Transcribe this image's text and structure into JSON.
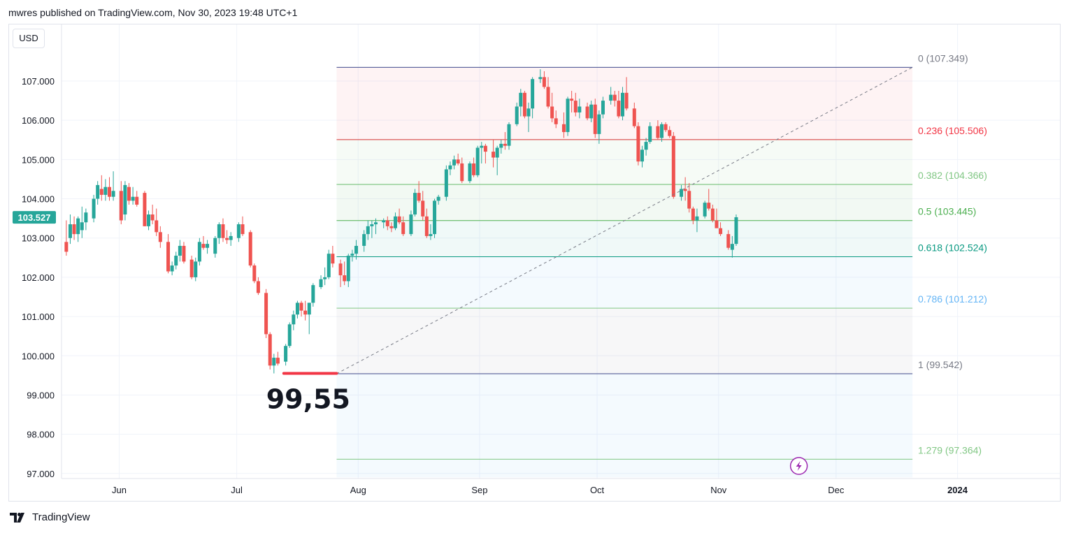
{
  "header": {
    "publisher_line": "mwres published on TradingView.com, Nov 30, 2023 19:48 UTC+1"
  },
  "footer": {
    "brand": "TradingView"
  },
  "currency_label": "USD",
  "colors": {
    "up": "#26a69a",
    "down": "#ef5350",
    "price_tag": "#26a69a",
    "level_line": "#089981",
    "annotation": "#f23645"
  },
  "chart_data": {
    "type": "candlestick",
    "y_ticks": [
      "107.000",
      "106.000",
      "105.000",
      "104.000",
      "103.000",
      "102.000",
      "101.000",
      "100.000",
      "99.000",
      "98.000",
      "97.000"
    ],
    "y_tick_values": [
      107,
      106,
      105,
      104,
      103,
      102,
      101,
      100,
      99,
      98,
      97
    ],
    "ylim": [
      96.9,
      108.3
    ],
    "x_ticks": [
      {
        "label": "Jun",
        "day": 0
      },
      {
        "label": "Jul",
        "day": 30
      },
      {
        "label": "Aug",
        "day": 61
      },
      {
        "label": "Sep",
        "day": 92
      },
      {
        "label": "Oct",
        "day": 122
      },
      {
        "label": "Nov",
        "day": 153
      },
      {
        "label": "Dec",
        "day": 183
      },
      {
        "label": "2024",
        "day": 214
      }
    ],
    "x_origin_date": "2023-06-01",
    "last_price": "103.527",
    "last_price_value": 103.527,
    "fib_start_day": 55.5,
    "fib_end_day": 202.5,
    "fib_levels": [
      {
        "label": "0 (107.349)",
        "value": 107.349,
        "color": "#787b86",
        "line": "#3f4a8c"
      },
      {
        "label": "0.236 (105.506)",
        "value": 105.506,
        "color": "#f23645",
        "line": "#d32f2f"
      },
      {
        "label": "0.382 (104.366)",
        "value": 104.366,
        "color": "#81c784",
        "line": "#66bb6a"
      },
      {
        "label": "0.5 (103.445)",
        "value": 103.445,
        "color": "#4caf50",
        "line": "#4caf50"
      },
      {
        "label": "0.618 (102.524)",
        "value": 102.524,
        "color": "#089981",
        "line": "#089981"
      },
      {
        "label": "0.786 (101.212)",
        "value": 101.212,
        "color": "#64b5f6",
        "line": "#81c784"
      },
      {
        "label": "1 (99.542)",
        "value": 99.542,
        "color": "#787b86",
        "line": "#3f4a8c"
      },
      {
        "label": "1.279 (97.364)",
        "value": 97.364,
        "color": "#81c784",
        "line": "#81c784"
      }
    ],
    "fib_zones": [
      {
        "from": 107.349,
        "to": 105.506,
        "fill": "rgba(242,54,69,0.06)"
      },
      {
        "from": 105.506,
        "to": 104.366,
        "fill": "rgba(129,199,132,0.07)"
      },
      {
        "from": 104.366,
        "to": 103.445,
        "fill": "rgba(76,175,80,0.07)"
      },
      {
        "from": 103.445,
        "to": 102.524,
        "fill": "rgba(8,153,129,0.06)"
      },
      {
        "from": 102.524,
        "to": 101.212,
        "fill": "rgba(100,181,246,0.07)"
      },
      {
        "from": 101.212,
        "to": 99.542,
        "fill": "rgba(120,123,134,0.06)"
      },
      {
        "from": 99.542,
        "to": 96.9,
        "fill": "rgba(100,181,246,0.07)"
      }
    ],
    "trend_line": {
      "from": {
        "day": 55.5,
        "value": 99.542
      },
      "to": {
        "day": 202.5,
        "value": 107.349
      }
    },
    "support_line": {
      "from_day": 42,
      "to_day": 55.5,
      "value": 99.55
    },
    "annotation_text": "99,55",
    "candles": [
      [
        -13.5,
        102.9,
        103.45,
        102.55,
        102.65
      ],
      [
        -12.5,
        103.0,
        103.6,
        102.85,
        103.35
      ],
      [
        -11.5,
        103.35,
        103.55,
        102.95,
        103.1
      ],
      [
        -10.5,
        103.1,
        103.55,
        102.9,
        103.5
      ],
      [
        -9.5,
        103.2,
        103.8,
        103.0,
        103.4
      ],
      [
        -8.5,
        103.4,
        103.75,
        103.2,
        103.65
      ],
      [
        -6.5,
        103.5,
        104.1,
        103.4,
        104.0
      ],
      [
        -5.5,
        104.0,
        104.45,
        103.85,
        104.35
      ],
      [
        -4.5,
        104.25,
        104.6,
        103.95,
        104.1
      ],
      [
        -3.5,
        104.1,
        104.5,
        103.95,
        104.3
      ],
      [
        -2.5,
        104.3,
        104.55,
        103.95,
        104.05
      ],
      [
        -1.5,
        104.05,
        104.7,
        103.95,
        104.2
      ],
      [
        0.5,
        104.2,
        104.45,
        103.35,
        103.45
      ],
      [
        1.5,
        103.6,
        104.45,
        103.45,
        104.35
      ],
      [
        2.5,
        104.3,
        104.4,
        103.85,
        103.95
      ],
      [
        3.5,
        103.95,
        104.3,
        103.85,
        104.05
      ],
      [
        4.5,
        104.05,
        104.2,
        103.8,
        103.85
      ],
      [
        6.5,
        104.15,
        104.2,
        103.3,
        103.3
      ],
      [
        7.5,
        103.3,
        103.7,
        103.2,
        103.6
      ],
      [
        8.5,
        103.6,
        103.85,
        103.35,
        103.45
      ],
      [
        9.5,
        103.45,
        103.75,
        103.05,
        103.15
      ],
      [
        10.5,
        103.15,
        103.3,
        102.75,
        102.9
      ],
      [
        12.5,
        102.9,
        103.1,
        102.1,
        102.15
      ],
      [
        13.5,
        102.15,
        102.4,
        102.05,
        102.3
      ],
      [
        14.5,
        102.3,
        102.65,
        102.2,
        102.55
      ],
      [
        15.5,
        102.55,
        102.95,
        102.4,
        102.8
      ],
      [
        16.5,
        102.8,
        102.9,
        102.35,
        102.4
      ],
      [
        18.5,
        102.45,
        102.55,
        101.95,
        102.0
      ],
      [
        19.5,
        102.0,
        102.5,
        101.9,
        102.4
      ],
      [
        20.5,
        102.4,
        103.0,
        102.3,
        102.9
      ],
      [
        21.5,
        102.85,
        103.05,
        102.7,
        102.75
      ],
      [
        22.5,
        102.75,
        102.95,
        102.6,
        102.85
      ],
      [
        24.5,
        102.6,
        103.05,
        102.5,
        103.0
      ],
      [
        25.5,
        103.0,
        103.4,
        102.85,
        103.35
      ],
      [
        26.5,
        103.35,
        103.5,
        102.9,
        103.0
      ],
      [
        27.5,
        103.0,
        103.2,
        102.85,
        102.95
      ],
      [
        28.5,
        102.95,
        103.15,
        102.8,
        103.05
      ],
      [
        30.5,
        103.0,
        103.4,
        102.9,
        103.35
      ],
      [
        31.5,
        103.35,
        103.55,
        103.05,
        103.1
      ],
      [
        33.5,
        103.15,
        103.2,
        102.25,
        102.3
      ],
      [
        34.5,
        102.3,
        102.35,
        101.85,
        101.9
      ],
      [
        35.5,
        101.9,
        102.0,
        101.55,
        101.6
      ],
      [
        37.5,
        101.6,
        101.7,
        100.45,
        100.55
      ],
      [
        38.5,
        100.55,
        100.6,
        99.65,
        99.75
      ],
      [
        39.5,
        99.75,
        100.05,
        99.55,
        99.95
      ],
      [
        40.5,
        99.95,
        100.1,
        99.75,
        99.8
      ],
      [
        42.5,
        99.85,
        100.3,
        99.75,
        100.25
      ],
      [
        43.5,
        100.25,
        100.85,
        100.2,
        100.8
      ],
      [
        44.5,
        100.8,
        101.15,
        100.65,
        101.05
      ],
      [
        45.5,
        101.05,
        101.4,
        100.95,
        101.35
      ],
      [
        46.5,
        101.35,
        101.4,
        101.0,
        101.15
      ],
      [
        47.5,
        101.15,
        101.4,
        100.9,
        101.05
      ],
      [
        48.5,
        101.05,
        101.35,
        100.55,
        101.35
      ],
      [
        49.5,
        101.35,
        101.85,
        101.25,
        101.8
      ],
      [
        51.5,
        101.75,
        102.05,
        101.7,
        101.95
      ],
      [
        52.5,
        101.95,
        102.25,
        101.8,
        102.0
      ],
      [
        53.5,
        102.0,
        102.7,
        101.95,
        102.6
      ],
      [
        54.5,
        102.6,
        102.8,
        102.25,
        102.35
      ],
      [
        56.5,
        102.35,
        102.45,
        101.75,
        102.05
      ],
      [
        57.5,
        102.05,
        102.4,
        101.8,
        101.9
      ],
      [
        58.5,
        101.9,
        102.6,
        101.75,
        102.55
      ],
      [
        59.5,
        102.55,
        102.7,
        102.4,
        102.6
      ],
      [
        60.5,
        102.6,
        102.95,
        102.45,
        102.8
      ],
      [
        62.5,
        102.8,
        103.2,
        102.65,
        103.1
      ],
      [
        63.5,
        103.1,
        103.45,
        102.95,
        103.3
      ],
      [
        64.5,
        103.3,
        103.45,
        103.0,
        103.35
      ],
      [
        65.5,
        103.35,
        103.5,
        103.1,
        103.4
      ],
      [
        67.5,
        103.4,
        103.5,
        103.25,
        103.45
      ],
      [
        68.5,
        103.45,
        103.55,
        103.2,
        103.3
      ],
      [
        69.5,
        103.3,
        103.4,
        103.15,
        103.25
      ],
      [
        70.5,
        103.25,
        103.65,
        103.2,
        103.55
      ],
      [
        71.5,
        103.55,
        103.75,
        103.35,
        103.4
      ],
      [
        72.5,
        103.4,
        103.55,
        103.05,
        103.1
      ],
      [
        74.5,
        103.1,
        103.7,
        103.05,
        103.6
      ],
      [
        75.5,
        103.6,
        104.25,
        103.55,
        104.15
      ],
      [
        76.5,
        104.15,
        104.45,
        103.9,
        103.95
      ],
      [
        77.5,
        103.95,
        104.2,
        103.45,
        103.55
      ],
      [
        78.5,
        103.55,
        103.75,
        103.0,
        103.05
      ],
      [
        79.5,
        103.05,
        103.35,
        102.95,
        103.1
      ],
      [
        80.5,
        103.1,
        104.0,
        103.0,
        103.95
      ],
      [
        81.5,
        103.95,
        104.1,
        103.85,
        104.05
      ],
      [
        83.5,
        104.05,
        104.85,
        103.95,
        104.75
      ],
      [
        84.5,
        104.75,
        104.95,
        104.6,
        104.85
      ],
      [
        85.5,
        104.85,
        105.1,
        104.75,
        105.0
      ],
      [
        86.5,
        105.0,
        105.15,
        104.85,
        104.9
      ],
      [
        87.5,
        104.9,
        105.05,
        104.4,
        104.45
      ],
      [
        89.5,
        104.45,
        104.95,
        104.4,
        104.9
      ],
      [
        90.5,
        104.9,
        105.05,
        104.55,
        104.6
      ],
      [
        91.5,
        104.6,
        105.35,
        104.55,
        105.3
      ],
      [
        92.5,
        105.3,
        105.45,
        104.9,
        105.35
      ],
      [
        93.5,
        105.35,
        105.4,
        104.9,
        105.2
      ],
      [
        95.5,
        105.2,
        105.5,
        104.8,
        105.05
      ],
      [
        96.5,
        105.05,
        105.35,
        104.6,
        105.3
      ],
      [
        97.5,
        105.3,
        105.5,
        105.15,
        105.4
      ],
      [
        98.5,
        105.4,
        105.7,
        105.25,
        105.35
      ],
      [
        99.5,
        105.35,
        105.95,
        105.25,
        105.9
      ],
      [
        101.5,
        105.9,
        106.45,
        105.85,
        106.35
      ],
      [
        102.5,
        106.35,
        106.8,
        106.1,
        106.7
      ],
      [
        103.5,
        106.7,
        106.75,
        106.05,
        106.1
      ],
      [
        104.5,
        106.1,
        106.45,
        105.7,
        106.3
      ],
      [
        105.5,
        106.3,
        107.1,
        106.05,
        107.05
      ],
      [
        107.5,
        107.05,
        107.3,
        106.95,
        107.1
      ],
      [
        108.5,
        107.1,
        107.25,
        106.8,
        106.85
      ],
      [
        109.5,
        106.85,
        107.1,
        106.3,
        106.35
      ],
      [
        110.5,
        106.35,
        106.7,
        105.95,
        106.05
      ],
      [
        111.5,
        106.05,
        106.25,
        105.8,
        105.9
      ],
      [
        113.5,
        105.9,
        106.2,
        105.55,
        105.7
      ],
      [
        114.5,
        105.7,
        106.6,
        105.6,
        106.55
      ],
      [
        115.5,
        106.55,
        106.75,
        106.2,
        106.5
      ],
      [
        116.5,
        106.5,
        106.7,
        106.1,
        106.2
      ],
      [
        117.5,
        106.2,
        106.55,
        106.05,
        106.35
      ],
      [
        119.5,
        106.35,
        106.45,
        106.0,
        106.05
      ],
      [
        120.5,
        106.05,
        106.5,
        105.95,
        106.4
      ],
      [
        121.5,
        106.4,
        106.55,
        105.55,
        105.65
      ],
      [
        122.5,
        105.65,
        106.25,
        105.4,
        106.15
      ],
      [
        123.5,
        106.15,
        106.6,
        106.05,
        106.5
      ],
      [
        125.5,
        106.5,
        106.85,
        106.4,
        106.65
      ],
      [
        126.5,
        106.65,
        106.75,
        106.35,
        106.5
      ],
      [
        127.5,
        106.5,
        106.75,
        106.05,
        106.1
      ],
      [
        128.5,
        106.1,
        106.85,
        106.0,
        106.7
      ],
      [
        129.5,
        106.7,
        107.1,
        106.25,
        106.3
      ],
      [
        131.5,
        106.3,
        106.45,
        105.8,
        105.85
      ],
      [
        132.5,
        105.85,
        105.95,
        104.85,
        104.95
      ],
      [
        133.5,
        104.95,
        105.35,
        104.8,
        105.25
      ],
      [
        134.5,
        105.25,
        105.55,
        105.1,
        105.45
      ],
      [
        135.5,
        105.45,
        105.95,
        105.4,
        105.85
      ],
      [
        137.5,
        105.85,
        106.0,
        105.5,
        105.55
      ],
      [
        138.5,
        105.55,
        105.95,
        105.45,
        105.9
      ],
      [
        139.5,
        105.9,
        105.95,
        105.7,
        105.75
      ],
      [
        140.5,
        105.75,
        105.85,
        105.55,
        105.6
      ],
      [
        141.5,
        105.6,
        105.7,
        104.0,
        104.05
      ],
      [
        143.5,
        104.05,
        104.35,
        103.95,
        104.25
      ],
      [
        144.5,
        104.25,
        104.55,
        103.95,
        104.2
      ],
      [
        145.5,
        104.2,
        104.4,
        103.65,
        103.75
      ],
      [
        146.5,
        103.75,
        103.8,
        103.35,
        103.45
      ],
      [
        147.5,
        103.45,
        103.75,
        103.15,
        103.55
      ],
      [
        149.5,
        103.55,
        103.95,
        103.5,
        103.9
      ],
      [
        150.5,
        103.9,
        104.25,
        103.7,
        103.75
      ],
      [
        151.5,
        103.75,
        103.85,
        103.4,
        103.45
      ],
      [
        152.5,
        103.45,
        103.75,
        103.3,
        103.25
      ],
      [
        153.5,
        103.25,
        103.4,
        103.05,
        103.1
      ],
      [
        155.5,
        103.1,
        103.2,
        102.7,
        102.75
      ],
      [
        156.5,
        102.7,
        103.05,
        102.5,
        102.85
      ],
      [
        157.5,
        102.85,
        103.6,
        102.8,
        103.53
      ]
    ]
  }
}
